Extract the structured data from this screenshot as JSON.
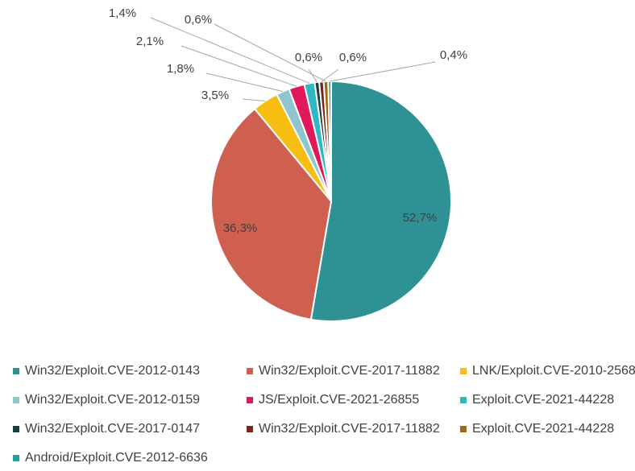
{
  "chart_data": {
    "type": "pie",
    "categories": [
      "Win32/Exploit.CVE-2012-0143",
      "Win32/Exploit.CVE-2017-11882",
      "LNK/Exploit.CVE-2010-2568",
      "Win32/Exploit.CVE-2012-0159",
      "JS/Exploit.CVE-2021-26855",
      "Exploit.CVE-2021-44228",
      "Win32/Exploit.CVE-2017-0147",
      "Win32/Exploit.CVE-2017-11882",
      "Exploit.CVE-2021-44228",
      "Android/Exploit.CVE-2012-6636"
    ],
    "values": [
      52.7,
      36.3,
      3.5,
      1.8,
      2.1,
      1.4,
      0.6,
      0.6,
      0.6,
      0.4
    ],
    "labels": [
      "52,7%",
      "36,3%",
      "3,5%",
      "1,8%",
      "2,1%",
      "1,4%",
      "0,6%",
      "0,6%",
      "0,6%",
      "0,4%"
    ],
    "colors": [
      "#2e9294",
      "#cf5f4e",
      "#f7bd10",
      "#8fc5cf",
      "#e0195b",
      "#2fb7c3",
      "#183f3d",
      "#7a2420",
      "#9a6a14",
      "#2b9d94"
    ],
    "legend_position": "bottom",
    "title": "",
    "xlabel": "",
    "ylabel": ""
  }
}
